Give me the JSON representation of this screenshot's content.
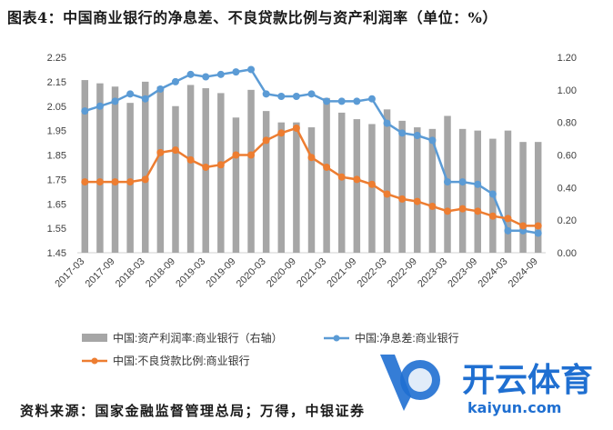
{
  "page": {
    "title": "图表4：中国商业银行的净息差、不良贷款比例与资产利润率（单位：%）",
    "source": "资料来源：国家金融监督管理总局；万得，中银证券"
  },
  "watermark": {
    "main": "开云体育",
    "sub": "kaiyun.com"
  },
  "colors": {
    "bar": "#a6a6a6",
    "nim": "#5b9bd5",
    "npl": "#ed7d31"
  },
  "chart_data": {
    "type": "bar+line",
    "x": [
      "2017-03",
      "2017-06",
      "2017-09",
      "2017-12",
      "2018-03",
      "2018-06",
      "2018-09",
      "2018-12",
      "2019-03",
      "2019-06",
      "2019-09",
      "2019-12",
      "2020-03",
      "2020-06",
      "2020-09",
      "2020-12",
      "2021-03",
      "2021-06",
      "2021-09",
      "2021-12",
      "2022-03",
      "2022-06",
      "2022-09",
      "2022-12",
      "2023-03",
      "2023-06",
      "2023-09",
      "2023-12",
      "2024-03",
      "2024-06",
      "2024-09"
    ],
    "xtick_labels": [
      "2017-03",
      "2017-09",
      "2018-03",
      "2018-09",
      "2019-03",
      "2019-09",
      "2020-03",
      "2020-09",
      "2021-03",
      "2021-09",
      "2022-03",
      "2022-09",
      "2023-03",
      "2023-09",
      "2024-03",
      "2024-09"
    ],
    "y_left": {
      "min": 1.45,
      "max": 2.25,
      "ticks": [
        "1.45",
        "1.55",
        "1.65",
        "1.75",
        "1.85",
        "1.95",
        "2.05",
        "2.15",
        "2.25"
      ]
    },
    "y_right": {
      "min": 0.0,
      "max": 1.2,
      "ticks": [
        "0.00",
        "0.20",
        "0.40",
        "0.60",
        "0.80",
        "1.00",
        "1.20"
      ]
    },
    "series": [
      {
        "name": "中国:资产利润率:商业银行（右轴）",
        "type": "bar",
        "axis": "right",
        "values": [
          1.06,
          1.04,
          1.02,
          0.92,
          1.05,
          1.02,
          0.9,
          1.03,
          1.01,
          0.98,
          0.83,
          1.0,
          0.87,
          0.8,
          0.8,
          0.77,
          0.95,
          0.86,
          0.82,
          0.79,
          0.88,
          0.81,
          0.77,
          0.76,
          0.84,
          0.76,
          0.75,
          0.7,
          0.75,
          0.68,
          0.68
        ]
      },
      {
        "name": "中国:净息差:商业银行",
        "type": "line",
        "axis": "left",
        "values": [
          2.03,
          2.05,
          2.07,
          2.1,
          2.08,
          2.12,
          2.15,
          2.18,
          2.17,
          2.18,
          2.19,
          2.2,
          2.1,
          2.09,
          2.09,
          2.1,
          2.07,
          2.07,
          2.07,
          2.08,
          1.98,
          1.94,
          1.93,
          1.91,
          1.74,
          1.74,
          1.73,
          1.69,
          1.54,
          1.54,
          1.53
        ]
      },
      {
        "name": "中国:不良贷款比例:商业银行",
        "type": "line",
        "axis": "left",
        "values": [
          1.74,
          1.74,
          1.74,
          1.74,
          1.75,
          1.86,
          1.87,
          1.83,
          1.8,
          1.81,
          1.85,
          1.85,
          1.91,
          1.94,
          1.96,
          1.84,
          1.8,
          1.76,
          1.75,
          1.73,
          1.69,
          1.67,
          1.66,
          1.64,
          1.62,
          1.63,
          1.62,
          1.6,
          1.59,
          1.56,
          1.56
        ]
      }
    ],
    "legend_position": "bottom",
    "grid": false
  }
}
